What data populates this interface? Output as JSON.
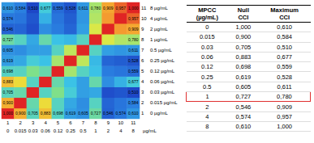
{
  "chart_data": {
    "type": "heatmap",
    "categories": [
      "0",
      "0.015",
      "0.03",
      "0.06",
      "0.12",
      "0.25",
      "0.5",
      "1",
      "2",
      "4",
      "8"
    ],
    "index_labels": [
      "1",
      "2",
      "3",
      "4",
      "5",
      "6",
      "7",
      "8",
      "9",
      "10",
      "11"
    ],
    "y_categories": [
      "0 µg/mL",
      "0.015 µg/mL",
      "0.03 µg/mL",
      "0.06 µg/mL",
      "0.12 µg/mL",
      "0.25 µg/mL",
      "0.5 µg/mL",
      "1 µg/mL",
      "2 µg/mL",
      "4 µg/mL",
      "8 µg/mL"
    ],
    "xlabel": "µg/mL",
    "values": [
      [
        1,
        0.9,
        0.705,
        0.883,
        0.698,
        0.619,
        0.605,
        0.727,
        0.546,
        0.574,
        0.61
      ],
      [
        0.9,
        1,
        0.72,
        0.85,
        0.7,
        0.63,
        0.6,
        0.7,
        0.55,
        0.57,
        0.584
      ],
      [
        0.705,
        0.72,
        1,
        0.7,
        0.75,
        0.68,
        0.62,
        0.63,
        0.52,
        0.53,
        0.51
      ],
      [
        0.883,
        0.85,
        0.7,
        1,
        0.72,
        0.66,
        0.62,
        0.72,
        0.6,
        0.64,
        0.677
      ],
      [
        0.698,
        0.7,
        0.75,
        0.72,
        1,
        0.78,
        0.7,
        0.66,
        0.58,
        0.57,
        0.559
      ],
      [
        0.619,
        0.63,
        0.68,
        0.66,
        0.78,
        1,
        0.8,
        0.65,
        0.55,
        0.54,
        0.528
      ],
      [
        0.605,
        0.6,
        0.62,
        0.62,
        0.7,
        0.8,
        1,
        0.7,
        0.62,
        0.61,
        0.611
      ],
      [
        0.727,
        0.7,
        0.63,
        0.72,
        0.66,
        0.65,
        0.7,
        1,
        0.82,
        0.79,
        0.78
      ],
      [
        0.546,
        0.55,
        0.52,
        0.6,
        0.58,
        0.55,
        0.62,
        0.82,
        1,
        0.92,
        0.909
      ],
      [
        0.574,
        0.57,
        0.53,
        0.64,
        0.57,
        0.54,
        0.61,
        0.79,
        0.92,
        1,
        0.957
      ],
      [
        0.61,
        0.584,
        0.51,
        0.677,
        0.559,
        0.528,
        0.611,
        0.78,
        0.909,
        0.957,
        1
      ]
    ],
    "value_labels": [
      [
        "1,000",
        "0,900",
        "0,705",
        "0,883",
        "0,698",
        "0,619",
        "0,605",
        "0,727",
        "0,546",
        "0,574",
        "0,610"
      ],
      [
        "0,900",
        null,
        null,
        null,
        null,
        null,
        null,
        null,
        null,
        null,
        "0,584"
      ],
      [
        "0,705",
        null,
        null,
        null,
        null,
        null,
        null,
        null,
        null,
        null,
        "0,510"
      ],
      [
        "0,883",
        null,
        null,
        null,
        null,
        null,
        null,
        null,
        null,
        null,
        "0,677"
      ],
      [
        "0,698",
        null,
        null,
        null,
        null,
        null,
        null,
        null,
        null,
        null,
        "0,559"
      ],
      [
        "0,619",
        null,
        null,
        null,
        null,
        null,
        null,
        null,
        null,
        null,
        "0,528"
      ],
      [
        "0,605",
        null,
        null,
        null,
        null,
        null,
        null,
        null,
        null,
        null,
        "0,611"
      ],
      [
        "0,727",
        null,
        null,
        null,
        null,
        null,
        null,
        null,
        null,
        null,
        "0,780"
      ],
      [
        "0,546",
        null,
        null,
        null,
        null,
        null,
        null,
        null,
        null,
        null,
        "0,909"
      ],
      [
        "0,574",
        null,
        null,
        null,
        null,
        null,
        null,
        null,
        null,
        null,
        "0,957"
      ],
      [
        "0,610",
        "0,584",
        "0,510",
        "0,677",
        "0,559",
        "0,528",
        "0,611",
        "0,780",
        "0,909",
        "0,957",
        "1,000"
      ]
    ],
    "color_range": [
      0.5,
      1
    ]
  },
  "table": {
    "header": [
      [
        "MPCC",
        "(µg/mL)"
      ],
      [
        "Null",
        "CCI"
      ],
      [
        "Maximum",
        "CCI"
      ]
    ],
    "rows": [
      [
        "0",
        "1,000",
        "0,610"
      ],
      [
        "0.015",
        "0,900",
        "0,584"
      ],
      [
        "0.03",
        "0,705",
        "0,510"
      ],
      [
        "0.06",
        "0,883",
        "0,677"
      ],
      [
        "0.12",
        "0,698",
        "0,559"
      ],
      [
        "0.25",
        "0,619",
        "0,528"
      ],
      [
        "0.5",
        "0,605",
        "0,611"
      ],
      [
        "1",
        "0,727",
        "0,780"
      ],
      [
        "2",
        "0,546",
        "0,909"
      ],
      [
        "4",
        "0,574",
        "0,957"
      ],
      [
        "8",
        "0,610",
        "1,000"
      ]
    ],
    "highlight_row": 7
  }
}
